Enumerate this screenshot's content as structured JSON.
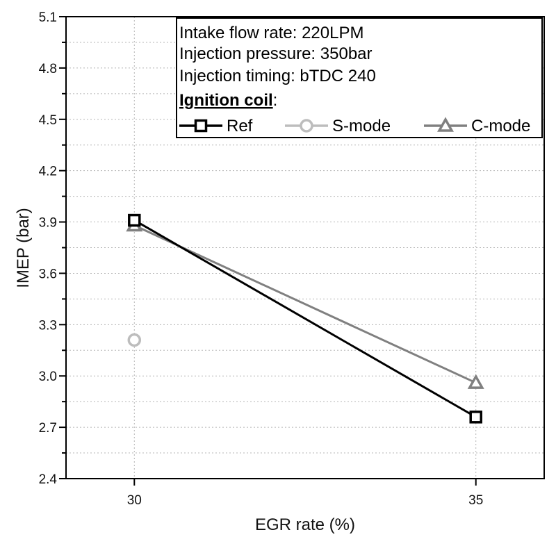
{
  "chart_data": {
    "type": "line",
    "xlabel": "EGR rate (%)",
    "ylabel": "IMEP (bar)",
    "x_ticks": [
      "30",
      "35"
    ],
    "y_ticks": [
      "2.4",
      "2.7",
      "3.0",
      "3.3",
      "3.6",
      "3.9",
      "4.2",
      "4.5",
      "4.8",
      "5.1"
    ],
    "xlim": [
      29,
      36
    ],
    "ylim": [
      2.4,
      5.1
    ],
    "grid": true,
    "series": [
      {
        "name": "Ref",
        "color": "#000000",
        "marker": "square",
        "x": [
          30,
          35
        ],
        "y": [
          3.91,
          2.76
        ]
      },
      {
        "name": "S-mode",
        "color": "#bdbdbd",
        "marker": "circle",
        "x": [
          30
        ],
        "y": [
          3.21
        ]
      },
      {
        "name": "C-mode",
        "color": "#808080",
        "marker": "triangle",
        "x": [
          30,
          35
        ],
        "y": [
          3.88,
          2.96
        ]
      }
    ],
    "annotations": {
      "lines": [
        "Intake flow rate: 220LPM",
        "Injection pressure: 350bar",
        "Injection timing: bTDC 240"
      ],
      "legend_title": "Ignition coil",
      "legend_title_suffix": ":"
    }
  }
}
